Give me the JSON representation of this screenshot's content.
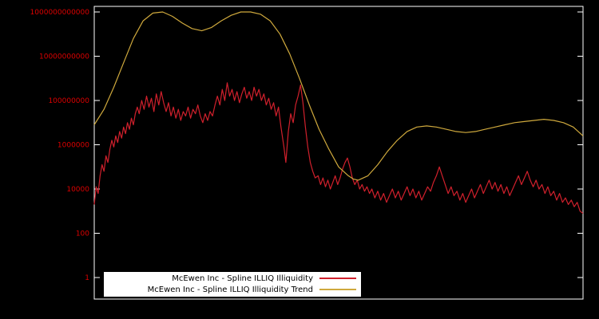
{
  "window": {
    "background_color": "#000000",
    "plot_border_color": "#ffffff"
  },
  "legend": {
    "background_color": "#ffffff",
    "entries": [
      {
        "label": "McEwen Inc - Spline ILLIQ Illiquidity"
      },
      {
        "label": "McEwen Inc - Spline ILLIQ Illiquidity Trend"
      }
    ]
  },
  "chart_data": {
    "type": "line",
    "title": "",
    "x_axis": {
      "labels_visible": false,
      "note": "x is a time index rendered as fraction 0-1, no tick labels shown"
    },
    "axes": {
      "y_scale": "log",
      "ylim_log10": [
        0,
        12
      ],
      "y_tick_labels": [
        "1",
        "100",
        "10000",
        "1000000",
        "100000000",
        "10000000000",
        "1000000000000"
      ],
      "y_tick_log10_values": [
        0,
        2,
        4,
        6,
        8,
        10,
        12
      ],
      "tick_label_color": "#dd0000",
      "grid": false
    },
    "legend_position": "bottom-center",
    "series": [
      {
        "name": "McEwen Inc - Spline ILLIQ Illiquidity",
        "color": "#d0202c",
        "points_format": "[x_fraction, log10_value]",
        "points": [
          [
            0.0,
            3.3
          ],
          [
            0.004,
            4.1
          ],
          [
            0.008,
            3.8
          ],
          [
            0.012,
            4.6
          ],
          [
            0.016,
            5.1
          ],
          [
            0.02,
            4.8
          ],
          [
            0.024,
            5.5
          ],
          [
            0.028,
            5.2
          ],
          [
            0.032,
            5.8
          ],
          [
            0.036,
            6.2
          ],
          [
            0.04,
            5.9
          ],
          [
            0.044,
            6.4
          ],
          [
            0.048,
            6.1
          ],
          [
            0.052,
            6.6
          ],
          [
            0.056,
            6.3
          ],
          [
            0.06,
            6.8
          ],
          [
            0.064,
            6.5
          ],
          [
            0.068,
            7.0
          ],
          [
            0.072,
            6.7
          ],
          [
            0.076,
            7.2
          ],
          [
            0.08,
            6.9
          ],
          [
            0.084,
            7.4
          ],
          [
            0.088,
            7.7
          ],
          [
            0.092,
            7.4
          ],
          [
            0.097,
            8.0
          ],
          [
            0.102,
            7.6
          ],
          [
            0.107,
            8.2
          ],
          [
            0.112,
            7.7
          ],
          [
            0.117,
            8.1
          ],
          [
            0.122,
            7.5
          ],
          [
            0.127,
            8.3
          ],
          [
            0.132,
            7.8
          ],
          [
            0.137,
            8.4
          ],
          [
            0.142,
            7.9
          ],
          [
            0.147,
            7.5
          ],
          [
            0.152,
            7.9
          ],
          [
            0.157,
            7.3
          ],
          [
            0.162,
            7.7
          ],
          [
            0.167,
            7.2
          ],
          [
            0.172,
            7.6
          ],
          [
            0.177,
            7.1
          ],
          [
            0.182,
            7.5
          ],
          [
            0.187,
            7.3
          ],
          [
            0.192,
            7.7
          ],
          [
            0.197,
            7.2
          ],
          [
            0.202,
            7.6
          ],
          [
            0.207,
            7.4
          ],
          [
            0.212,
            7.8
          ],
          [
            0.217,
            7.3
          ],
          [
            0.222,
            7.0
          ],
          [
            0.227,
            7.4
          ],
          [
            0.232,
            7.1
          ],
          [
            0.237,
            7.5
          ],
          [
            0.242,
            7.3
          ],
          [
            0.247,
            7.8
          ],
          [
            0.252,
            8.2
          ],
          [
            0.257,
            7.8
          ],
          [
            0.262,
            8.5
          ],
          [
            0.267,
            8.0
          ],
          [
            0.272,
            8.8
          ],
          [
            0.277,
            8.2
          ],
          [
            0.282,
            8.5
          ],
          [
            0.287,
            8.0
          ],
          [
            0.292,
            8.4
          ],
          [
            0.297,
            7.9
          ],
          [
            0.302,
            8.3
          ],
          [
            0.307,
            8.6
          ],
          [
            0.312,
            8.1
          ],
          [
            0.317,
            8.4
          ],
          [
            0.322,
            8.0
          ],
          [
            0.327,
            8.6
          ],
          [
            0.332,
            8.2
          ],
          [
            0.337,
            8.5
          ],
          [
            0.342,
            8.0
          ],
          [
            0.347,
            8.3
          ],
          [
            0.352,
            7.8
          ],
          [
            0.357,
            8.1
          ],
          [
            0.362,
            7.6
          ],
          [
            0.367,
            7.9
          ],
          [
            0.372,
            7.3
          ],
          [
            0.377,
            7.7
          ],
          [
            0.382,
            6.8
          ],
          [
            0.388,
            5.9
          ],
          [
            0.392,
            5.2
          ],
          [
            0.397,
            6.6
          ],
          [
            0.402,
            7.4
          ],
          [
            0.407,
            7.0
          ],
          [
            0.412,
            7.8
          ],
          [
            0.417,
            8.2
          ],
          [
            0.422,
            8.7
          ],
          [
            0.427,
            7.9
          ],
          [
            0.432,
            6.8
          ],
          [
            0.437,
            5.9
          ],
          [
            0.442,
            5.2
          ],
          [
            0.447,
            4.8
          ],
          [
            0.452,
            4.5
          ],
          [
            0.458,
            4.6
          ],
          [
            0.463,
            4.2
          ],
          [
            0.468,
            4.5
          ],
          [
            0.473,
            4.1
          ],
          [
            0.478,
            4.4
          ],
          [
            0.483,
            4.0
          ],
          [
            0.488,
            4.3
          ],
          [
            0.493,
            4.6
          ],
          [
            0.498,
            4.2
          ],
          [
            0.503,
            4.5
          ],
          [
            0.508,
            4.9
          ],
          [
            0.513,
            5.2
          ],
          [
            0.518,
            5.4
          ],
          [
            0.523,
            5.0
          ],
          [
            0.528,
            4.5
          ],
          [
            0.533,
            4.2
          ],
          [
            0.538,
            4.4
          ],
          [
            0.543,
            4.0
          ],
          [
            0.548,
            4.2
          ],
          [
            0.553,
            3.9
          ],
          [
            0.558,
            4.1
          ],
          [
            0.563,
            3.8
          ],
          [
            0.568,
            4.0
          ],
          [
            0.574,
            3.6
          ],
          [
            0.58,
            3.9
          ],
          [
            0.586,
            3.5
          ],
          [
            0.592,
            3.8
          ],
          [
            0.598,
            3.4
          ],
          [
            0.604,
            3.7
          ],
          [
            0.61,
            4.0
          ],
          [
            0.616,
            3.6
          ],
          [
            0.622,
            3.9
          ],
          [
            0.628,
            3.5
          ],
          [
            0.634,
            3.8
          ],
          [
            0.64,
            4.1
          ],
          [
            0.646,
            3.7
          ],
          [
            0.652,
            4.0
          ],
          [
            0.658,
            3.6
          ],
          [
            0.664,
            3.9
          ],
          [
            0.67,
            3.5
          ],
          [
            0.676,
            3.8
          ],
          [
            0.682,
            4.1
          ],
          [
            0.688,
            3.9
          ],
          [
            0.694,
            4.3
          ],
          [
            0.7,
            4.6
          ],
          [
            0.706,
            5.0
          ],
          [
            0.712,
            4.6
          ],
          [
            0.718,
            4.2
          ],
          [
            0.724,
            3.8
          ],
          [
            0.73,
            4.1
          ],
          [
            0.736,
            3.7
          ],
          [
            0.742,
            3.9
          ],
          [
            0.748,
            3.5
          ],
          [
            0.754,
            3.8
          ],
          [
            0.76,
            3.4
          ],
          [
            0.766,
            3.7
          ],
          [
            0.772,
            4.0
          ],
          [
            0.778,
            3.6
          ],
          [
            0.784,
            3.9
          ],
          [
            0.79,
            4.2
          ],
          [
            0.796,
            3.8
          ],
          [
            0.802,
            4.1
          ],
          [
            0.808,
            4.4
          ],
          [
            0.814,
            4.0
          ],
          [
            0.82,
            4.3
          ],
          [
            0.826,
            3.9
          ],
          [
            0.832,
            4.2
          ],
          [
            0.838,
            3.8
          ],
          [
            0.844,
            4.1
          ],
          [
            0.85,
            3.7
          ],
          [
            0.856,
            4.0
          ],
          [
            0.862,
            4.3
          ],
          [
            0.868,
            4.6
          ],
          [
            0.874,
            4.2
          ],
          [
            0.88,
            4.5
          ],
          [
            0.886,
            4.8
          ],
          [
            0.892,
            4.4
          ],
          [
            0.898,
            4.1
          ],
          [
            0.904,
            4.4
          ],
          [
            0.91,
            4.0
          ],
          [
            0.916,
            4.2
          ],
          [
            0.922,
            3.8
          ],
          [
            0.928,
            4.1
          ],
          [
            0.934,
            3.7
          ],
          [
            0.94,
            3.9
          ],
          [
            0.946,
            3.5
          ],
          [
            0.952,
            3.8
          ],
          [
            0.958,
            3.4
          ],
          [
            0.964,
            3.6
          ],
          [
            0.97,
            3.3
          ],
          [
            0.976,
            3.5
          ],
          [
            0.982,
            3.2
          ],
          [
            0.988,
            3.4
          ],
          [
            0.994,
            3.0
          ],
          [
            1.0,
            2.9
          ]
        ]
      },
      {
        "name": "McEwen Inc - Spline ILLIQ Illiquidity Trend",
        "color": "#cfa93d",
        "points_format": "[x_fraction, log10_value]",
        "points": [
          [
            0.0,
            6.9
          ],
          [
            0.02,
            7.6
          ],
          [
            0.04,
            8.6
          ],
          [
            0.06,
            9.7
          ],
          [
            0.08,
            10.8
          ],
          [
            0.1,
            11.6
          ],
          [
            0.12,
            11.95
          ],
          [
            0.14,
            12.0
          ],
          [
            0.16,
            11.8
          ],
          [
            0.18,
            11.5
          ],
          [
            0.2,
            11.25
          ],
          [
            0.22,
            11.15
          ],
          [
            0.24,
            11.3
          ],
          [
            0.26,
            11.6
          ],
          [
            0.28,
            11.85
          ],
          [
            0.3,
            12.0
          ],
          [
            0.32,
            12.0
          ],
          [
            0.34,
            11.9
          ],
          [
            0.36,
            11.6
          ],
          [
            0.38,
            11.0
          ],
          [
            0.4,
            10.1
          ],
          [
            0.42,
            9.0
          ],
          [
            0.44,
            7.8
          ],
          [
            0.46,
            6.7
          ],
          [
            0.48,
            5.8
          ],
          [
            0.5,
            5.0
          ],
          [
            0.52,
            4.6
          ],
          [
            0.53,
            4.45
          ],
          [
            0.54,
            4.4
          ],
          [
            0.56,
            4.6
          ],
          [
            0.58,
            5.1
          ],
          [
            0.6,
            5.7
          ],
          [
            0.62,
            6.2
          ],
          [
            0.64,
            6.6
          ],
          [
            0.66,
            6.8
          ],
          [
            0.68,
            6.85
          ],
          [
            0.7,
            6.8
          ],
          [
            0.72,
            6.7
          ],
          [
            0.74,
            6.6
          ],
          [
            0.76,
            6.55
          ],
          [
            0.78,
            6.6
          ],
          [
            0.8,
            6.7
          ],
          [
            0.82,
            6.8
          ],
          [
            0.84,
            6.9
          ],
          [
            0.86,
            7.0
          ],
          [
            0.88,
            7.05
          ],
          [
            0.9,
            7.1
          ],
          [
            0.92,
            7.15
          ],
          [
            0.94,
            7.1
          ],
          [
            0.96,
            7.0
          ],
          [
            0.98,
            6.8
          ],
          [
            1.0,
            6.4
          ]
        ]
      }
    ]
  }
}
